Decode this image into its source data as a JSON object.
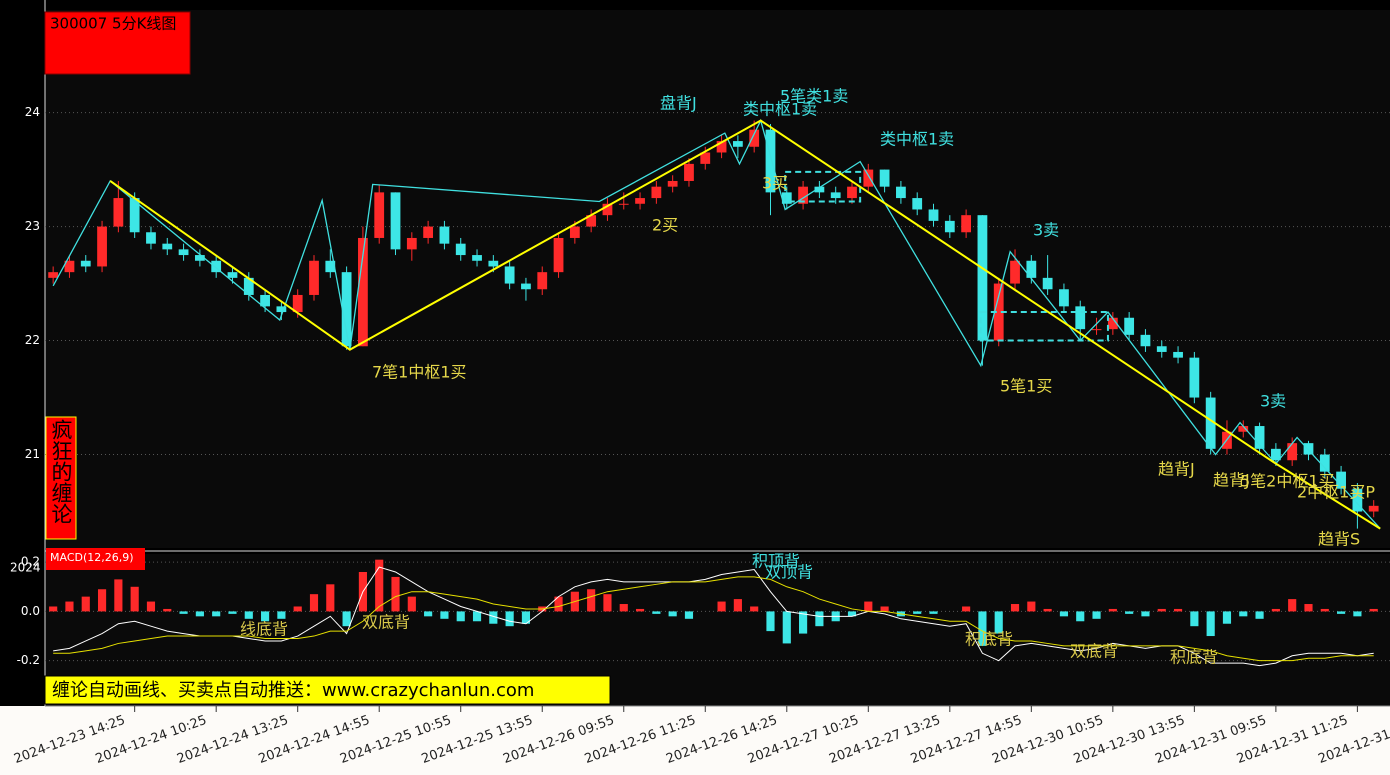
{
  "header": {
    "title": "300007 5分K线图",
    "brand": "疯狂的缠论",
    "banner": "缠论自动画线、买卖点自动推送：www.crazychanlun.com"
  },
  "chart_data": [
    {
      "type": "candlestick",
      "up_color": "#ff2a2a",
      "down_color": "#3de6e6",
      "grid": true,
      "ylim": [
        20.18,
        24.9
      ],
      "yticks": [
        21,
        22,
        23,
        24
      ],
      "xlim": [
        0,
        82.5
      ],
      "xticks": [
        {
          "value": 5.5,
          "label": "2024-12-23 14:25"
        },
        {
          "value": 10.5,
          "label": "2024-12-24 10:25"
        },
        {
          "value": 15.5,
          "label": "2024-12-24 13:25"
        },
        {
          "value": 20.5,
          "label": "2024-12-24 14:55"
        },
        {
          "value": 25.5,
          "label": "2024-12-25 10:55"
        },
        {
          "value": 30.5,
          "label": "2024-12-25 13:55"
        },
        {
          "value": 35.5,
          "label": "2024-12-26 09:55"
        },
        {
          "value": 40.5,
          "label": "2024-12-26 11:25"
        },
        {
          "value": 45.5,
          "label": "2024-12-26 14:25"
        },
        {
          "value": 50.5,
          "label": "2024-12-27 10:25"
        },
        {
          "value": 55.5,
          "label": "2024-12-27 13:25"
        },
        {
          "value": 60.5,
          "label": "2024-12-27 14:55"
        },
        {
          "value": 65.5,
          "label": "2024-12-30 10:55"
        },
        {
          "value": 70.5,
          "label": "2024-12-30 13:55"
        },
        {
          "value": 75.5,
          "label": "2024-12-31 09:55"
        },
        {
          "value": 80.5,
          "label": "2024-12-31 11:25"
        },
        {
          "value": 85.5,
          "label": "2024-12-31"
        }
      ],
      "candles": [
        [
          22.55,
          22.65,
          22.5,
          22.6
        ],
        [
          22.6,
          22.75,
          22.55,
          22.7
        ],
        [
          22.7,
          22.75,
          22.6,
          22.65
        ],
        [
          22.65,
          23.05,
          22.6,
          23.0
        ],
        [
          23.0,
          23.4,
          22.95,
          23.25
        ],
        [
          23.25,
          23.3,
          22.9,
          22.95
        ],
        [
          22.95,
          23.0,
          22.8,
          22.85
        ],
        [
          22.85,
          22.9,
          22.75,
          22.8
        ],
        [
          22.8,
          22.85,
          22.7,
          22.75
        ],
        [
          22.75,
          22.8,
          22.65,
          22.7
        ],
        [
          22.7,
          22.75,
          22.55,
          22.6
        ],
        [
          22.6,
          22.65,
          22.5,
          22.55
        ],
        [
          22.55,
          22.6,
          22.35,
          22.4
        ],
        [
          22.4,
          22.45,
          22.25,
          22.3
        ],
        [
          22.3,
          22.35,
          22.18,
          22.25
        ],
        [
          22.25,
          22.45,
          22.2,
          22.4
        ],
        [
          22.4,
          22.75,
          22.35,
          22.7
        ],
        [
          22.7,
          22.8,
          22.55,
          22.6
        ],
        [
          22.6,
          22.65,
          21.92,
          21.95
        ],
        [
          21.95,
          23.0,
          21.95,
          22.9
        ],
        [
          22.9,
          23.37,
          22.85,
          23.3
        ],
        [
          23.3,
          23.3,
          22.75,
          22.8
        ],
        [
          22.8,
          22.95,
          22.7,
          22.9
        ],
        [
          22.9,
          23.05,
          22.85,
          23.0
        ],
        [
          23.0,
          23.05,
          22.8,
          22.85
        ],
        [
          22.85,
          22.9,
          22.7,
          22.75
        ],
        [
          22.75,
          22.8,
          22.65,
          22.7
        ],
        [
          22.7,
          22.75,
          22.6,
          22.65
        ],
        [
          22.65,
          22.7,
          22.45,
          22.5
        ],
        [
          22.5,
          22.55,
          22.35,
          22.45
        ],
        [
          22.45,
          22.65,
          22.4,
          22.6
        ],
        [
          22.6,
          22.95,
          22.55,
          22.9
        ],
        [
          22.9,
          23.05,
          22.85,
          23.0
        ],
        [
          23.0,
          23.15,
          22.95,
          23.1
        ],
        [
          23.1,
          23.25,
          23.05,
          23.2
        ],
        [
          23.2,
          23.3,
          23.15,
          23.2
        ],
        [
          23.2,
          23.3,
          23.15,
          23.25
        ],
        [
          23.25,
          23.4,
          23.2,
          23.35
        ],
        [
          23.35,
          23.45,
          23.3,
          23.4
        ],
        [
          23.4,
          23.6,
          23.35,
          23.55
        ],
        [
          23.55,
          23.7,
          23.5,
          23.65
        ],
        [
          23.65,
          23.8,
          23.6,
          23.75
        ],
        [
          23.75,
          23.8,
          23.6,
          23.7
        ],
        [
          23.7,
          23.93,
          23.65,
          23.85
        ],
        [
          23.85,
          23.9,
          23.1,
          23.3
        ],
        [
          23.3,
          23.35,
          23.15,
          23.2
        ],
        [
          23.2,
          23.4,
          23.15,
          23.35
        ],
        [
          23.35,
          23.4,
          23.25,
          23.3
        ],
        [
          23.3,
          23.35,
          23.2,
          23.25
        ],
        [
          23.25,
          23.4,
          23.2,
          23.35
        ],
        [
          23.35,
          23.55,
          23.3,
          23.5
        ],
        [
          23.5,
          23.5,
          23.3,
          23.35
        ],
        [
          23.35,
          23.4,
          23.2,
          23.25
        ],
        [
          23.25,
          23.3,
          23.1,
          23.15
        ],
        [
          23.15,
          23.2,
          23.0,
          23.05
        ],
        [
          23.05,
          23.1,
          22.9,
          22.95
        ],
        [
          22.95,
          23.15,
          22.9,
          23.1
        ],
        [
          23.1,
          23.1,
          21.78,
          22.0
        ],
        [
          22.0,
          22.55,
          21.95,
          22.5
        ],
        [
          22.5,
          22.8,
          22.45,
          22.7
        ],
        [
          22.7,
          22.75,
          22.5,
          22.55
        ],
        [
          22.55,
          22.75,
          22.4,
          22.45
        ],
        [
          22.45,
          22.5,
          22.25,
          22.3
        ],
        [
          22.3,
          22.35,
          22.0,
          22.1
        ],
        [
          22.1,
          22.2,
          22.05,
          22.1
        ],
        [
          22.1,
          22.25,
          22.05,
          22.2
        ],
        [
          22.2,
          22.25,
          22.0,
          22.05
        ],
        [
          22.05,
          22.1,
          21.9,
          21.95
        ],
        [
          21.95,
          22.0,
          21.85,
          21.9
        ],
        [
          21.9,
          21.95,
          21.8,
          21.85
        ],
        [
          21.85,
          21.9,
          21.45,
          21.5
        ],
        [
          21.5,
          21.55,
          21.0,
          21.05
        ],
        [
          21.05,
          21.3,
          21.0,
          21.2
        ],
        [
          21.2,
          21.3,
          21.15,
          21.25
        ],
        [
          21.25,
          21.28,
          21.0,
          21.05
        ],
        [
          21.05,
          21.1,
          20.9,
          20.95
        ],
        [
          20.95,
          21.15,
          20.9,
          21.1
        ],
        [
          21.1,
          21.12,
          20.95,
          21.0
        ],
        [
          21.0,
          21.05,
          20.8,
          20.85
        ],
        [
          20.85,
          20.9,
          20.65,
          20.7
        ],
        [
          20.7,
          20.75,
          20.35,
          20.5
        ],
        [
          20.5,
          20.6,
          20.45,
          20.55
        ]
      ],
      "bi": {
        "color": "#40e0e0",
        "x": [
          0.5,
          4.0,
          14.4,
          17.0,
          18.7,
          20.1,
          34.0,
          41.7,
          42.6,
          43.9,
          45.4,
          50.0,
          57.4,
          59.2,
          63.5,
          65.2,
          71.8,
          73.3,
          75.5,
          76.8,
          81.9
        ],
        "y": [
          22.48,
          23.4,
          22.18,
          23.23,
          21.92,
          23.37,
          23.22,
          23.82,
          23.55,
          23.93,
          23.15,
          23.57,
          21.78,
          22.78,
          22.0,
          22.25,
          21.0,
          21.28,
          20.92,
          21.15,
          20.35
        ]
      },
      "segments": {
        "color": "#ffff00",
        "x": [
          4.0,
          18.7,
          43.9,
          75.5,
          81.9
        ],
        "y": [
          23.4,
          21.92,
          23.93,
          20.92,
          20.35
        ]
      },
      "zhongshu_color": "#40e0e0",
      "zhongshu": [
        {
          "x": [
            45.4,
            50.0
          ],
          "y": [
            23.22,
            23.48
          ]
        },
        {
          "x": [
            57.4,
            65.2
          ],
          "y": [
            22.0,
            22.25
          ]
        }
      ],
      "annotations": [
        {
          "text": "盘背J",
          "color": "#40e0e0"
        },
        {
          "text": "5笔类1卖",
          "color": "#40e0e0"
        },
        {
          "text": "类中枢1卖",
          "color": "#40e0e0"
        },
        {
          "text": "3买",
          "color": "#e6d84a"
        },
        {
          "text": "类中枢1卖",
          "color": "#40e0e0"
        },
        {
          "text": "2买",
          "color": "#e6d84a"
        },
        {
          "text": "7笔1中枢1买",
          "color": "#e6d84a"
        },
        {
          "text": "3卖",
          "color": "#40e0e0"
        },
        {
          "text": "5笔1买",
          "color": "#e6d84a"
        },
        {
          "text": "3卖",
          "color": "#40e0e0"
        },
        {
          "text": "趋背J",
          "color": "#e6d84a"
        },
        {
          "text": "趋背J",
          "color": "#e6d84a"
        },
        {
          "text": "5笔2中枢1买",
          "color": "#e6d84a"
        },
        {
          "text": "2中枢1买P",
          "color": "#e6d84a"
        },
        {
          "text": "趋背S",
          "color": "#e6d84a"
        }
      ]
    },
    {
      "type": "macd",
      "title": "MACD(12,26,9)",
      "overlap_label": "2024",
      "up_color": "#ff2a2a",
      "down_color": "#3de6e6",
      "grid": true,
      "ylim": [
        -0.384,
        0.229
      ],
      "yticks": [
        0.2,
        {
          "value": 0,
          "label": "0.0"
        },
        -0.2
      ],
      "xlim": [
        0,
        82.5
      ],
      "histogram": [
        0.02,
        0.04,
        0.06,
        0.09,
        0.13,
        0.1,
        0.04,
        0.01,
        -0.01,
        -0.02,
        -0.02,
        -0.01,
        -0.03,
        -0.04,
        -0.03,
        0.02,
        0.07,
        0.11,
        -0.06,
        0.16,
        0.21,
        0.14,
        0.06,
        -0.02,
        -0.03,
        -0.04,
        -0.04,
        -0.05,
        -0.06,
        -0.05,
        0.02,
        0.06,
        0.08,
        0.09,
        0.07,
        0.03,
        0.01,
        -0.01,
        -0.02,
        -0.03,
        0.0,
        0.04,
        0.05,
        0.02,
        -0.08,
        -0.13,
        -0.09,
        -0.06,
        -0.04,
        -0.02,
        0.04,
        0.02,
        -0.02,
        -0.01,
        -0.01,
        0.0,
        0.02,
        -0.14,
        -0.09,
        0.03,
        0.04,
        0.01,
        -0.02,
        -0.04,
        -0.03,
        0.01,
        -0.01,
        -0.02,
        0.01,
        0.01,
        -0.06,
        -0.1,
        -0.05,
        -0.02,
        -0.03,
        0.01,
        0.05,
        0.03,
        0.01,
        -0.01,
        -0.02,
        0.01
      ],
      "series": [
        {
          "color": "#ffffff",
          "values": [
            -0.16,
            -0.15,
            -0.12,
            -0.09,
            -0.05,
            -0.04,
            -0.06,
            -0.08,
            -0.09,
            -0.1,
            -0.1,
            -0.1,
            -0.11,
            -0.12,
            -0.12,
            -0.1,
            -0.06,
            -0.02,
            -0.09,
            0.08,
            0.18,
            0.16,
            0.12,
            0.08,
            0.05,
            0.02,
            0.0,
            -0.02,
            -0.04,
            -0.05,
            0.0,
            0.06,
            0.1,
            0.12,
            0.13,
            0.12,
            0.12,
            0.12,
            0.12,
            0.12,
            0.13,
            0.15,
            0.16,
            0.17,
            0.08,
            0.0,
            -0.01,
            -0.02,
            -0.02,
            -0.02,
            0.0,
            -0.01,
            -0.03,
            -0.04,
            -0.05,
            -0.06,
            -0.05,
            -0.17,
            -0.2,
            -0.14,
            -0.13,
            -0.14,
            -0.15,
            -0.16,
            -0.15,
            -0.13,
            -0.14,
            -0.15,
            -0.14,
            -0.14,
            -0.17,
            -0.21,
            -0.21,
            -0.21,
            -0.22,
            -0.21,
            -0.18,
            -0.17,
            -0.17,
            -0.17,
            -0.18,
            -0.17
          ]
        },
        {
          "color": "#e6e000",
          "values": [
            -0.17,
            -0.17,
            -0.16,
            -0.15,
            -0.13,
            -0.12,
            -0.11,
            -0.1,
            -0.1,
            -0.1,
            -0.1,
            -0.1,
            -0.1,
            -0.11,
            -0.11,
            -0.11,
            -0.1,
            -0.08,
            -0.08,
            -0.04,
            0.02,
            0.06,
            0.08,
            0.08,
            0.07,
            0.06,
            0.05,
            0.03,
            0.02,
            0.01,
            0.01,
            0.02,
            0.04,
            0.06,
            0.08,
            0.09,
            0.1,
            0.11,
            0.12,
            0.12,
            0.12,
            0.13,
            0.14,
            0.14,
            0.13,
            0.1,
            0.08,
            0.05,
            0.03,
            0.01,
            0.0,
            0.0,
            -0.01,
            -0.02,
            -0.03,
            -0.04,
            -0.04,
            -0.08,
            -0.11,
            -0.12,
            -0.12,
            -0.13,
            -0.14,
            -0.14,
            -0.14,
            -0.14,
            -0.14,
            -0.14,
            -0.14,
            -0.14,
            -0.15,
            -0.16,
            -0.18,
            -0.19,
            -0.2,
            -0.2,
            -0.2,
            -0.19,
            -0.19,
            -0.18,
            -0.18,
            -0.18
          ]
        }
      ],
      "annotations": [
        {
          "text": "积顶背",
          "color": "#40e0e0"
        },
        {
          "text": "双顶背",
          "color": "#40e0e0"
        },
        {
          "text": "线底背",
          "color": "#d8c84a"
        },
        {
          "text": "双底背",
          "color": "#d8c84a"
        },
        {
          "text": "积底背",
          "color": "#d8c84a"
        },
        {
          "text": "双底背",
          "color": "#d8c84a"
        },
        {
          "text": "积底背",
          "color": "#d8c84a"
        }
      ]
    }
  ]
}
